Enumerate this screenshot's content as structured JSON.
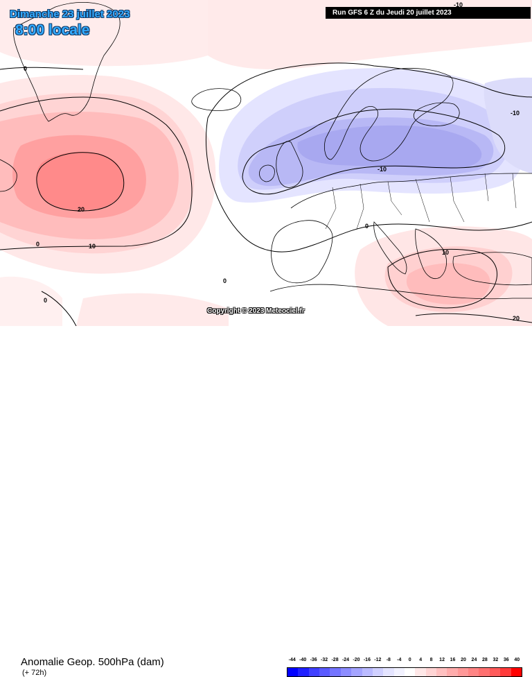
{
  "header": {
    "date": "Dimanche 23 juillet 2023",
    "time": "8:00 locale",
    "run": "Run GFS 6 Z du Jeudi 20 juillet 2023"
  },
  "copyright": "Copyright © 2023 Meteociel.fr",
  "footer": {
    "parameter": "Anomalie Geop. 500hPa (dam)",
    "lead_time": "(+ 72h)"
  },
  "scale": {
    "ticks": [
      "-44",
      "-40",
      "-36",
      "-32",
      "-28",
      "-24",
      "-20",
      "-16",
      "-12",
      "-8",
      "-4",
      "0",
      "4",
      "8",
      "12",
      "16",
      "20",
      "24",
      "28",
      "32",
      "36",
      "40"
    ],
    "colors": [
      "#0000ff",
      "#2020ff",
      "#4040ff",
      "#5a5aff",
      "#7474ff",
      "#8c8cff",
      "#a4a4ff",
      "#babaff",
      "#d0d0ff",
      "#e4e4ff",
      "#f2f2ff",
      "#ffffff",
      "#ffe8e8",
      "#ffd4d4",
      "#ffc0c0",
      "#ffacac",
      "#ff9898",
      "#ff8484",
      "#ff7070",
      "#ff5a5a",
      "#ff3a3a",
      "#ff0000"
    ]
  },
  "contour_labels": {
    "north_atlantic_0": "0",
    "greenland_0": "0",
    "high_20": "20",
    "high_10": "10",
    "sw_0_a": "0",
    "sw_0_b": "0",
    "sw_0_c": "0",
    "north_sea_-10": "-10",
    "russia_-10": "-10",
    "med_0": "0",
    "greece_10": "10",
    "greece_20": "20",
    "nw_russia_-10": "-10"
  }
}
